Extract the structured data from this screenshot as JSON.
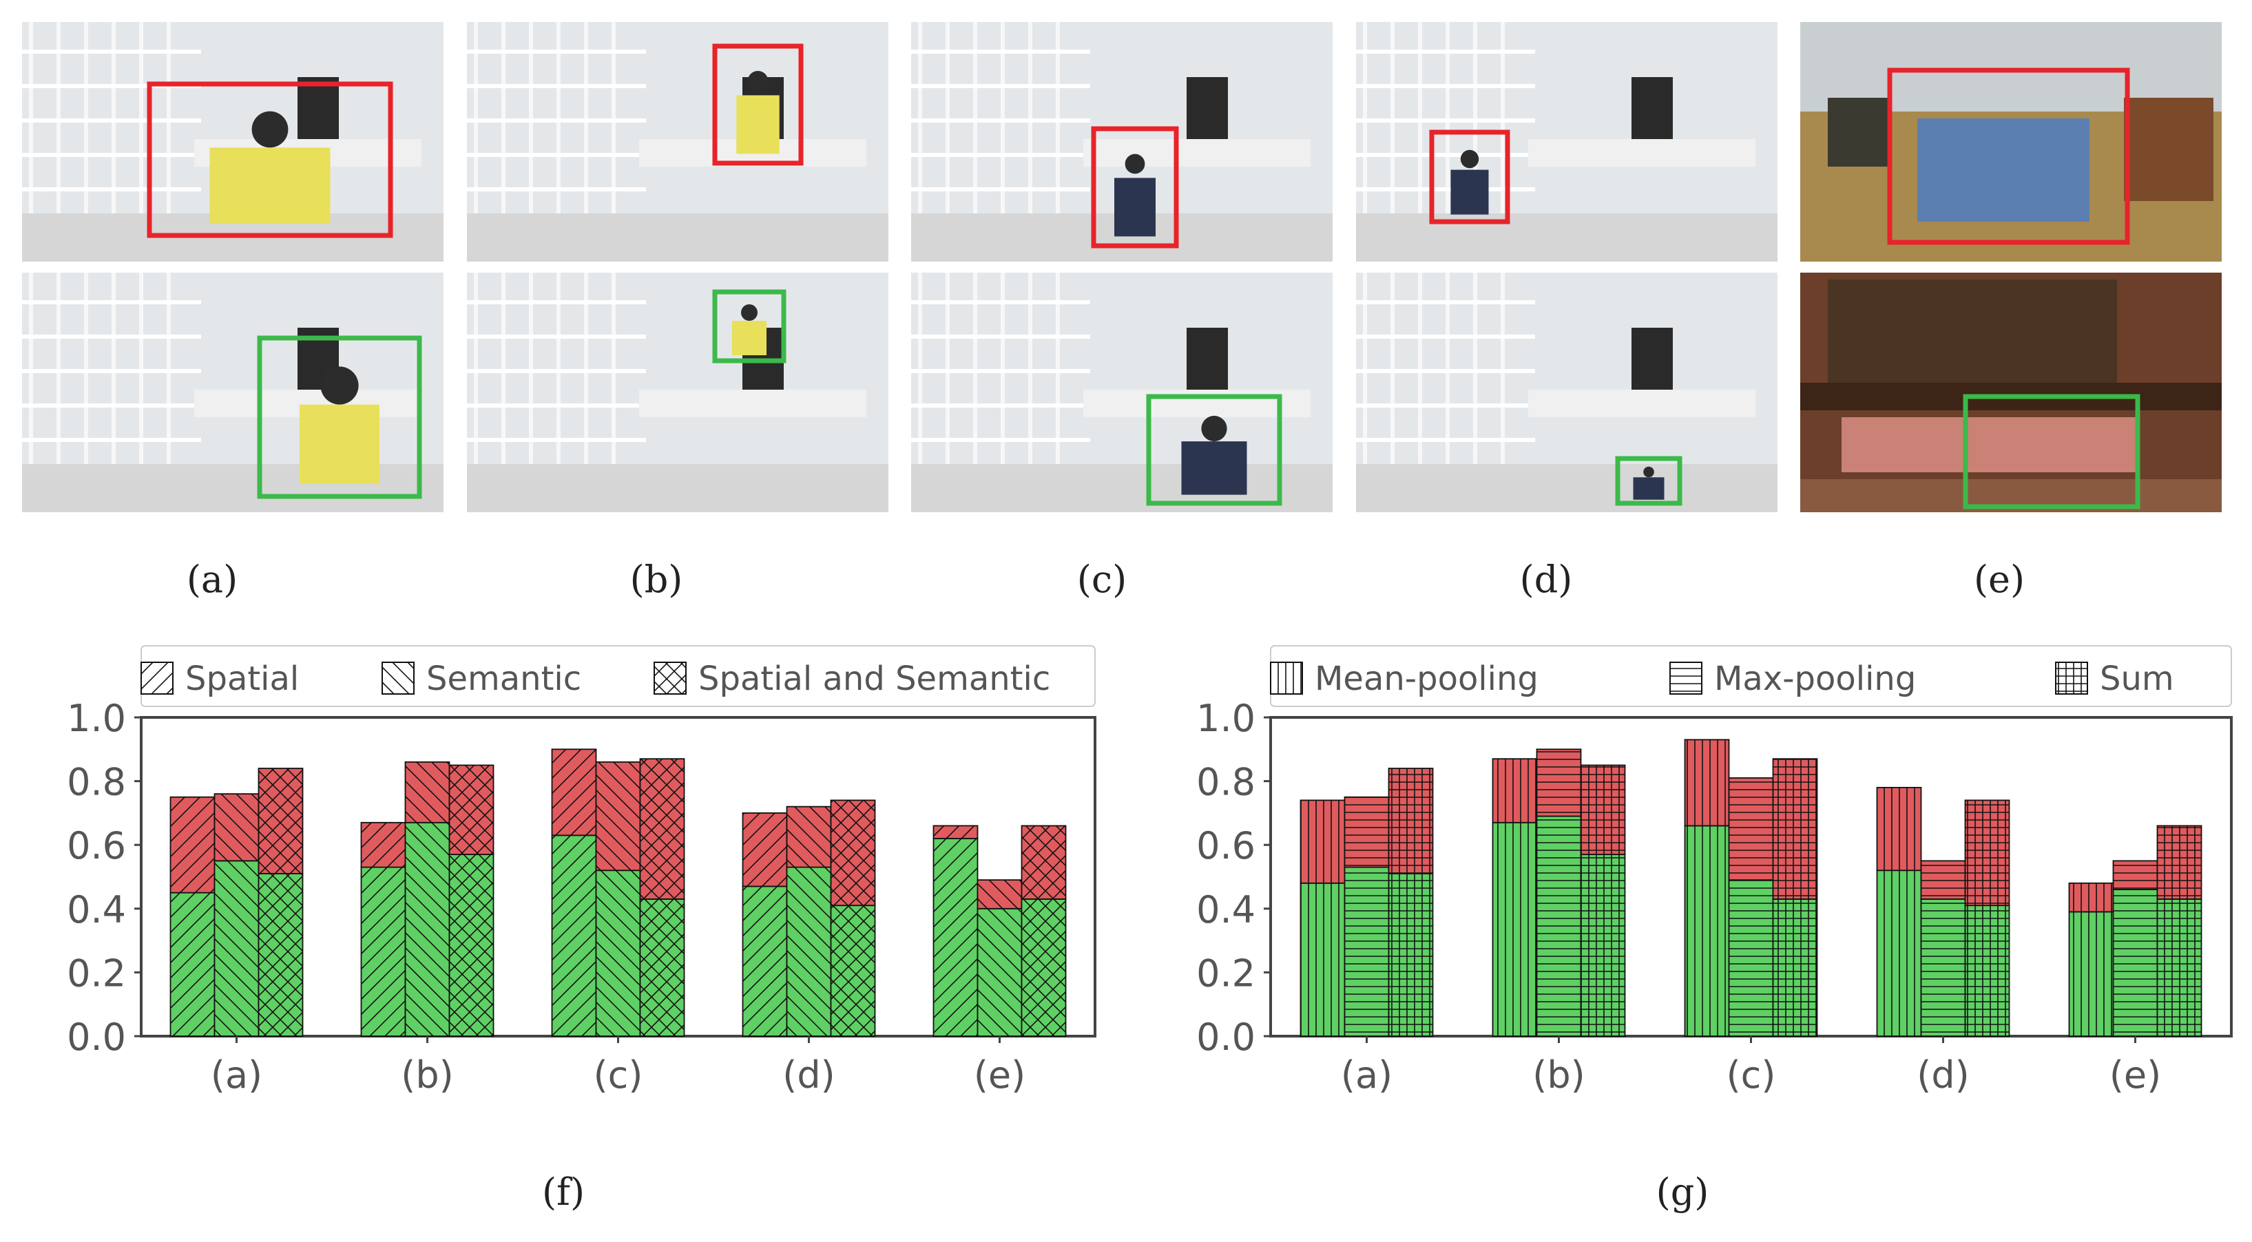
{
  "photos": {
    "captions": [
      "(a)",
      "(b)",
      "(c)",
      "(d)",
      "(e)"
    ],
    "box_colors": {
      "top": "#e8232a",
      "bottom": "#3cb94a"
    }
  },
  "charts": {
    "captions": [
      "(f)",
      "(g)"
    ]
  },
  "colors": {
    "green": "#5fd064",
    "red": "#e05b5e",
    "axis": "#444444",
    "text": "#555555"
  },
  "chart_data": [
    {
      "type": "bar",
      "stacked": true,
      "caption": "(f)",
      "categories": [
        "(a)",
        "(b)",
        "(c)",
        "(d)",
        "(e)"
      ],
      "ylim": [
        0.0,
        1.0
      ],
      "yticks": [
        "0.0",
        "0.2",
        "0.4",
        "0.6",
        "0.8",
        "1.0"
      ],
      "grid": false,
      "legend_position": "top",
      "series": [
        {
          "name": "Spatial",
          "hatch": "diag-right",
          "lower": [
            0.45,
            0.53,
            0.63,
            0.47,
            0.62
          ],
          "total": [
            0.75,
            0.67,
            0.9,
            0.7,
            0.66
          ]
        },
        {
          "name": "Semantic",
          "hatch": "diag-left",
          "lower": [
            0.55,
            0.67,
            0.52,
            0.53,
            0.4
          ],
          "total": [
            0.76,
            0.86,
            0.86,
            0.72,
            0.49
          ]
        },
        {
          "name": "Spatial and Semantic",
          "hatch": "cross-diag",
          "lower": [
            0.51,
            0.57,
            0.43,
            0.41,
            0.43
          ],
          "total": [
            0.84,
            0.85,
            0.87,
            0.74,
            0.66
          ]
        }
      ]
    },
    {
      "type": "bar",
      "stacked": true,
      "caption": "(g)",
      "categories": [
        "(a)",
        "(b)",
        "(c)",
        "(d)",
        "(e)"
      ],
      "ylim": [
        0.0,
        1.0
      ],
      "yticks": [
        "0.0",
        "0.2",
        "0.4",
        "0.6",
        "0.8",
        "1.0"
      ],
      "grid": false,
      "legend_position": "top",
      "series": [
        {
          "name": "Mean-pooling",
          "hatch": "vertical",
          "lower": [
            0.48,
            0.67,
            0.66,
            0.52,
            0.39
          ],
          "total": [
            0.74,
            0.87,
            0.93,
            0.78,
            0.48
          ]
        },
        {
          "name": "Max-pooling",
          "hatch": "horizontal",
          "lower": [
            0.53,
            0.69,
            0.49,
            0.43,
            0.46
          ],
          "total": [
            0.75,
            0.9,
            0.81,
            0.55,
            0.55
          ]
        },
        {
          "name": "Sum",
          "hatch": "grid",
          "lower": [
            0.51,
            0.57,
            0.43,
            0.41,
            0.43
          ],
          "total": [
            0.84,
            0.85,
            0.87,
            0.74,
            0.66
          ]
        }
      ]
    }
  ]
}
